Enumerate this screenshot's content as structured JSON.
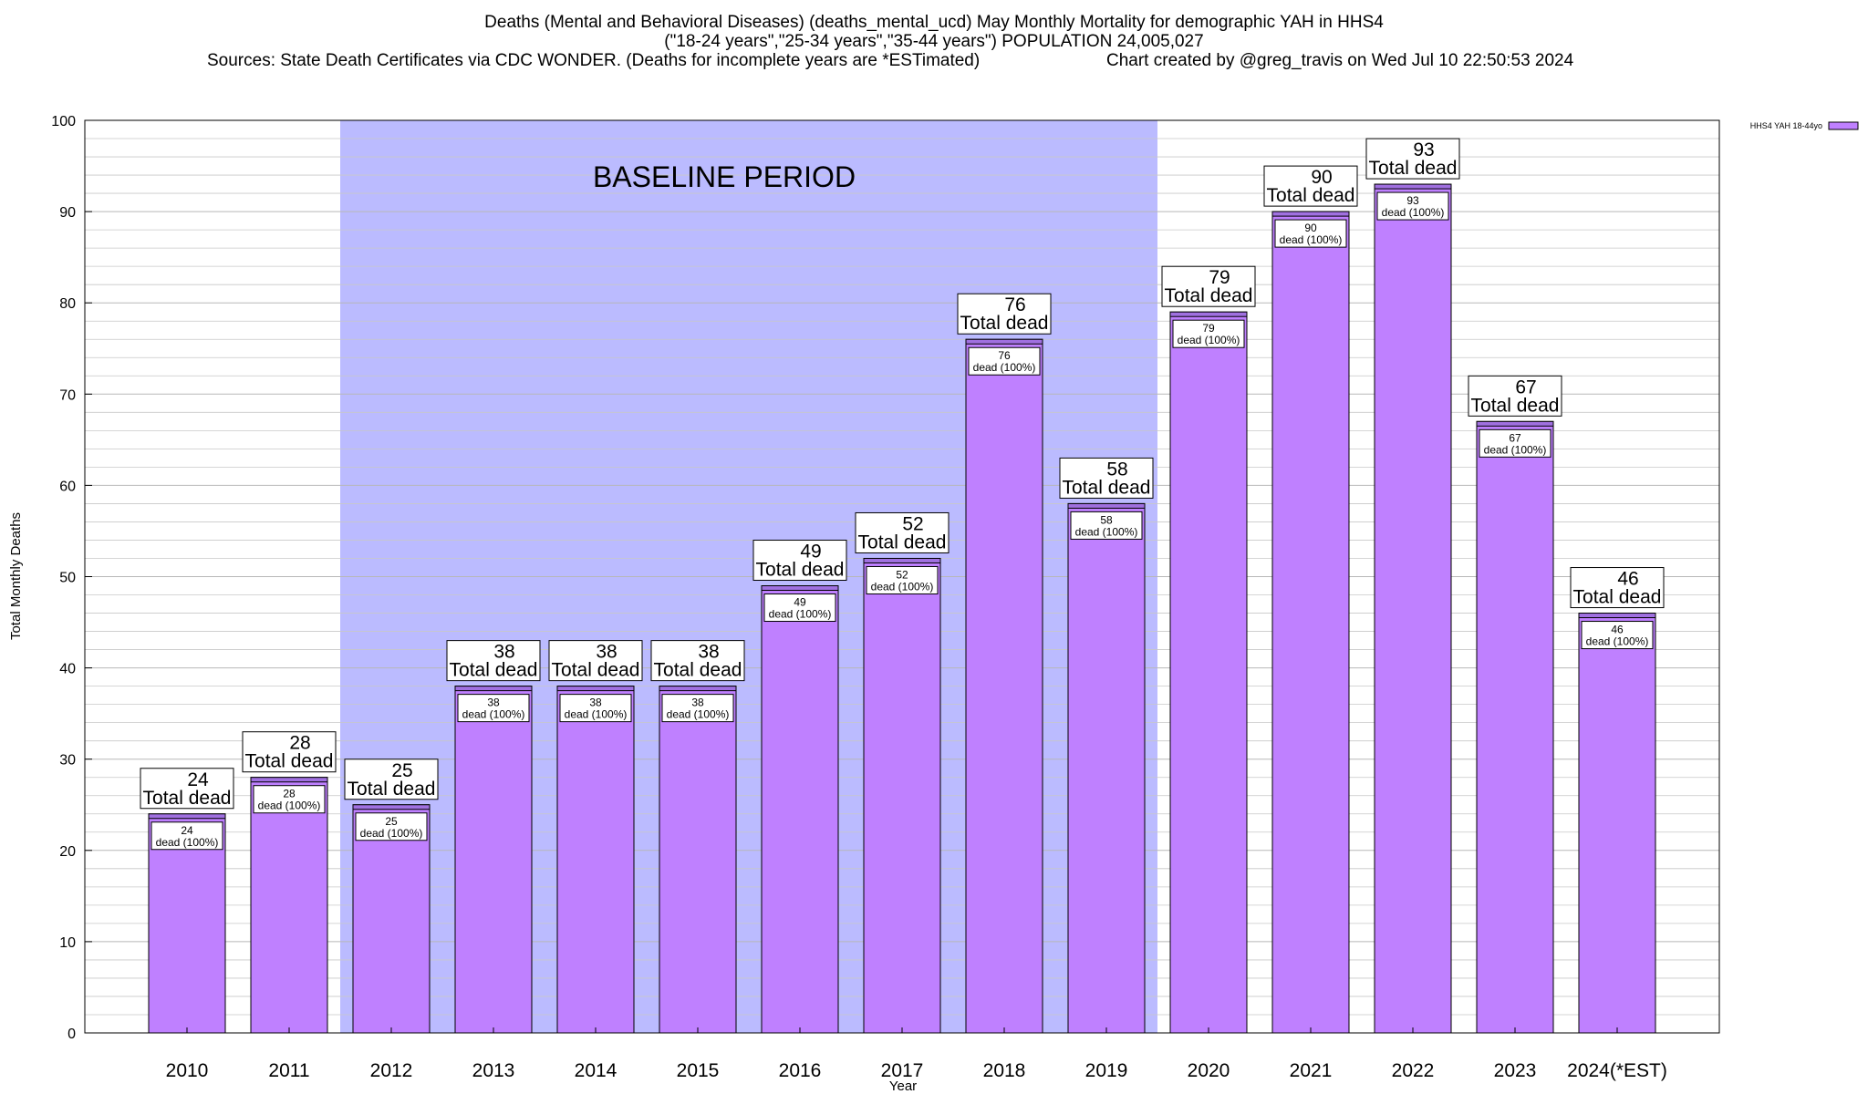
{
  "chart_data": {
    "type": "bar",
    "title_lines": [
      "Deaths (Mental and Behavioral Diseases) (deaths_mental_ucd) May Monthly Mortality for demographic YAH in HHS4",
      "(\"18-24 years\",\"25-34 years\",\"35-44 years\") POPULATION 24,005,027"
    ],
    "sources": "Sources: State Death Certificates via CDC WONDER. (Deaths for incomplete years are *ESTimated)",
    "credit": "Chart created by @greg_travis on Wed Jul 10 22:50:53 2024",
    "xlabel": "Year",
    "ylabel": "Total Monthly Deaths",
    "ylim": [
      0,
      100
    ],
    "yticks": [
      0,
      10,
      20,
      30,
      40,
      50,
      60,
      70,
      80,
      90,
      100
    ],
    "grid": true,
    "legend": {
      "position": "top-right",
      "label": "HHS4 YAH 18-44yo"
    },
    "baseline": {
      "label": "BASELINE PERIOD",
      "from": "2012",
      "to": "2019"
    },
    "categories": [
      "2010",
      "2011",
      "2012",
      "2013",
      "2014",
      "2015",
      "2016",
      "2017",
      "2018",
      "2019",
      "2020",
      "2021",
      "2022",
      "2023",
      "2024(*EST)"
    ],
    "series": [
      {
        "name": "HHS4 YAH 18-44yo",
        "values": [
          24,
          28,
          25,
          38,
          38,
          38,
          49,
          52,
          76,
          58,
          79,
          90,
          93,
          67,
          46
        ]
      }
    ],
    "total_label_text": "Total dead",
    "inner_label_text": "dead (100%)",
    "colors": {
      "bar": "#bf80ff",
      "bar_top": "#a070e0",
      "baseline_band": "#bbbbff",
      "grid": "#c8c8c8"
    }
  }
}
